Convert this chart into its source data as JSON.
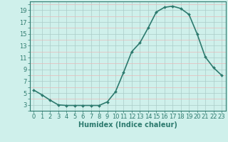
{
  "x": [
    0,
    1,
    2,
    3,
    4,
    5,
    6,
    7,
    8,
    9,
    10,
    11,
    12,
    13,
    14,
    15,
    16,
    17,
    18,
    19,
    20,
    21,
    22,
    23
  ],
  "y": [
    5.5,
    4.7,
    3.8,
    3.0,
    2.9,
    2.9,
    2.9,
    2.9,
    2.9,
    3.5,
    5.2,
    8.5,
    12.0,
    13.5,
    16.0,
    18.7,
    19.5,
    19.7,
    19.3,
    18.3,
    15.0,
    11.1,
    9.3,
    8.0
  ],
  "line_color": "#2d7a6e",
  "marker": "D",
  "marker_size": 2.0,
  "bg_color": "#cff0eb",
  "grid_color_major": "#aaccc8",
  "grid_color_minor": "#e8b8b8",
  "xlabel": "Humidex (Indice chaleur)",
  "xlabel_fontsize": 7.0,
  "ylabel_ticks": [
    3,
    5,
    7,
    9,
    11,
    13,
    15,
    17,
    19
  ],
  "xlim": [
    -0.5,
    23.5
  ],
  "ylim": [
    2.0,
    20.5
  ],
  "tick_fontsize": 6.0,
  "line_width": 1.2
}
